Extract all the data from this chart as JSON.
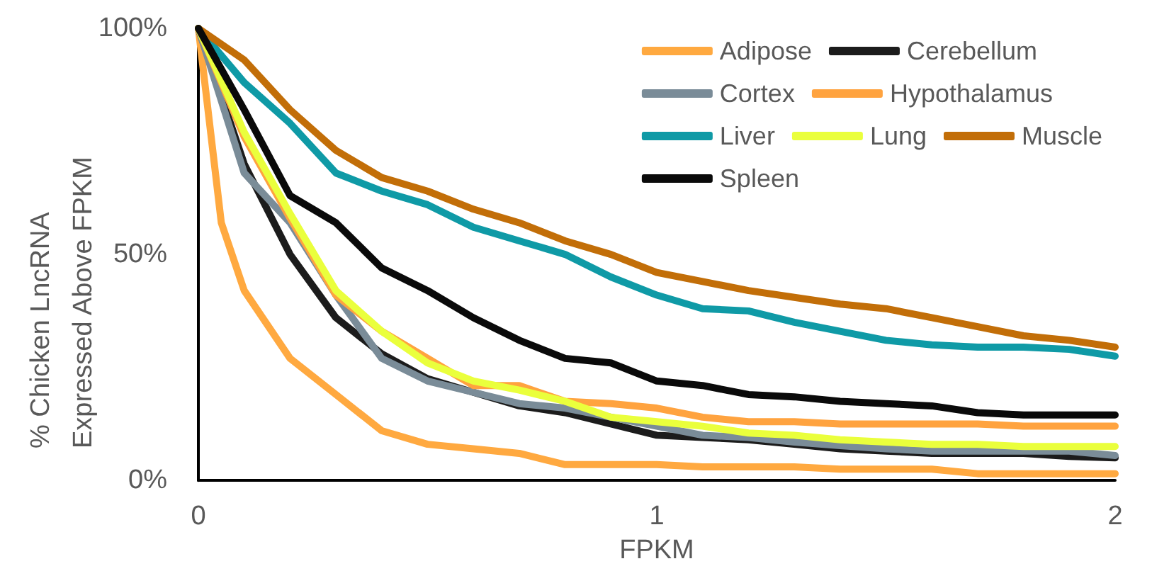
{
  "chart_data": {
    "type": "line",
    "xlabel": "FPKM",
    "ylabel": "% Chicken LncRNA Expressed Above FPKM",
    "x": [
      0,
      0.1,
      0.2,
      0.3,
      0.4,
      0.5,
      0.6,
      0.7,
      0.8,
      0.9,
      1.0,
      1.1,
      1.2,
      1.3,
      1.4,
      1.5,
      1.6,
      1.7,
      1.8,
      1.9,
      2.0
    ],
    "xlim": [
      0,
      2
    ],
    "xticks": [
      0,
      1,
      2
    ],
    "ylim": [
      0,
      100
    ],
    "yticks": [
      {
        "value": 0,
        "label": "0%"
      },
      {
        "value": 50,
        "label": "50%"
      },
      {
        "value": 100,
        "label": "100%"
      }
    ],
    "grid": false,
    "legend": "top right",
    "marker": "none",
    "line_style": "solid",
    "series": [
      {
        "name": "Adipose",
        "color": "#ffa940",
        "x": [
          0,
          0.05,
          0.1,
          0.2,
          0.3,
          0.4,
          0.5,
          0.6,
          0.7,
          0.8,
          0.9,
          1.0,
          1.1,
          1.2,
          1.3,
          1.4,
          1.5,
          1.6,
          1.7,
          1.8,
          1.9,
          2.0
        ],
        "values": [
          100,
          57,
          42,
          27,
          19,
          11,
          8,
          7,
          6,
          3.5,
          3.5,
          3.5,
          3,
          3,
          3,
          2.5,
          2.5,
          2.5,
          1.5,
          1.5,
          1.5,
          1.5
        ]
      },
      {
        "name": "Cerebellum",
        "color": "#1c1c1c",
        "values": [
          100,
          70,
          50,
          36,
          28,
          22.5,
          19.5,
          16.5,
          15,
          12.5,
          10,
          9.5,
          9,
          8,
          7,
          6.5,
          6,
          6,
          6,
          5.3,
          5
        ]
      },
      {
        "name": "Cortex",
        "color": "#7a8c98",
        "values": [
          100,
          68,
          57,
          41,
          27,
          22,
          19.5,
          17,
          16,
          14,
          12,
          10,
          9.5,
          8.5,
          7.7,
          7,
          6.5,
          6.5,
          6.5,
          6.5,
          5.5
        ]
      },
      {
        "name": "Hypothalamus",
        "color": "#ffa33f",
        "values": [
          100,
          76,
          58,
          41,
          33,
          27,
          21,
          21,
          17.5,
          17,
          16,
          14,
          13,
          13,
          12.5,
          12.5,
          12.5,
          12.5,
          12,
          12,
          12
        ]
      },
      {
        "name": "Liver",
        "color": "#0f9aa6",
        "values": [
          100,
          88,
          79,
          68,
          64,
          61,
          56,
          53,
          50,
          45,
          41,
          38,
          37.5,
          35,
          33,
          31,
          30,
          29.5,
          29.5,
          29,
          27.5
        ]
      },
      {
        "name": "Lung",
        "color": "#eaff3c",
        "values": [
          100,
          77,
          59,
          42,
          33,
          26,
          22,
          20,
          17.5,
          14,
          13,
          12,
          10.5,
          10,
          9,
          8.5,
          8,
          8,
          7.5,
          7.5,
          7.5
        ]
      },
      {
        "name": "Muscle",
        "color": "#c26e08",
        "values": [
          100,
          93,
          82,
          73,
          67,
          64,
          60,
          57,
          53,
          50,
          46,
          44,
          42,
          40.5,
          39,
          38,
          36,
          34,
          32,
          31,
          29.5
        ]
      },
      {
        "name": "Spleen",
        "color": "#0a0a0a",
        "values": [
          100,
          82,
          63,
          57,
          47,
          42,
          36,
          31,
          27,
          26,
          22,
          21,
          19,
          18.5,
          17.5,
          17,
          16.5,
          15,
          14.5,
          14.5,
          14.5
        ]
      }
    ]
  }
}
